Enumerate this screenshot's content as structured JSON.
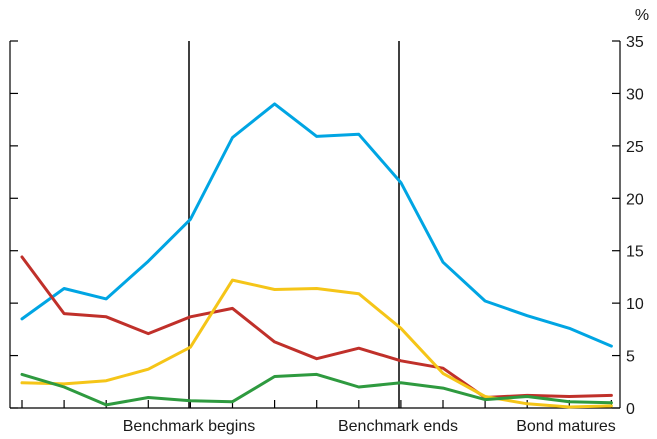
{
  "chart_data": {
    "type": "line",
    "y_unit": "%",
    "ylim": [
      0,
      35
    ],
    "y_ticks": [
      0,
      5,
      10,
      15,
      20,
      25,
      30,
      35
    ],
    "y_axis_side": "right",
    "grid": false,
    "x": [
      0,
      1,
      2,
      3,
      4,
      5,
      6,
      7,
      8,
      9,
      10,
      11,
      12,
      13,
      14
    ],
    "x_labels": [
      {
        "label": "Benchmark begins",
        "at": 5
      },
      {
        "label": "Benchmark ends",
        "at": 9
      },
      {
        "label": "Bond matures",
        "at": 13
      }
    ],
    "markers": [
      {
        "at": 4,
        "style": "vertical-line"
      },
      {
        "at": 9,
        "style": "vertical-line"
      }
    ],
    "series": [
      {
        "color": "#00a5e3",
        "values": [
          8.5,
          11.4,
          10.4,
          14.0,
          18.0,
          25.8,
          29.0,
          25.9,
          26.1,
          21.5,
          13.9,
          10.2,
          8.8,
          7.6,
          5.9
        ]
      },
      {
        "color": "#c0302a",
        "values": [
          14.4,
          9.0,
          8.7,
          7.1,
          8.7,
          9.5,
          6.3,
          4.7,
          5.7,
          4.5,
          3.8,
          1.0,
          1.2,
          1.1,
          1.2
        ]
      },
      {
        "color": "#f5c518",
        "values": [
          2.4,
          2.3,
          2.6,
          3.7,
          5.8,
          12.2,
          11.3,
          11.4,
          10.9,
          7.6,
          3.3,
          1.1,
          0.4,
          0.1,
          0.2
        ]
      },
      {
        "color": "#2e9a3f",
        "values": [
          3.2,
          2.0,
          0.3,
          1.0,
          0.7,
          0.6,
          3.0,
          3.2,
          2.0,
          2.4,
          1.9,
          0.8,
          1.1,
          0.6,
          0.5
        ]
      }
    ]
  }
}
